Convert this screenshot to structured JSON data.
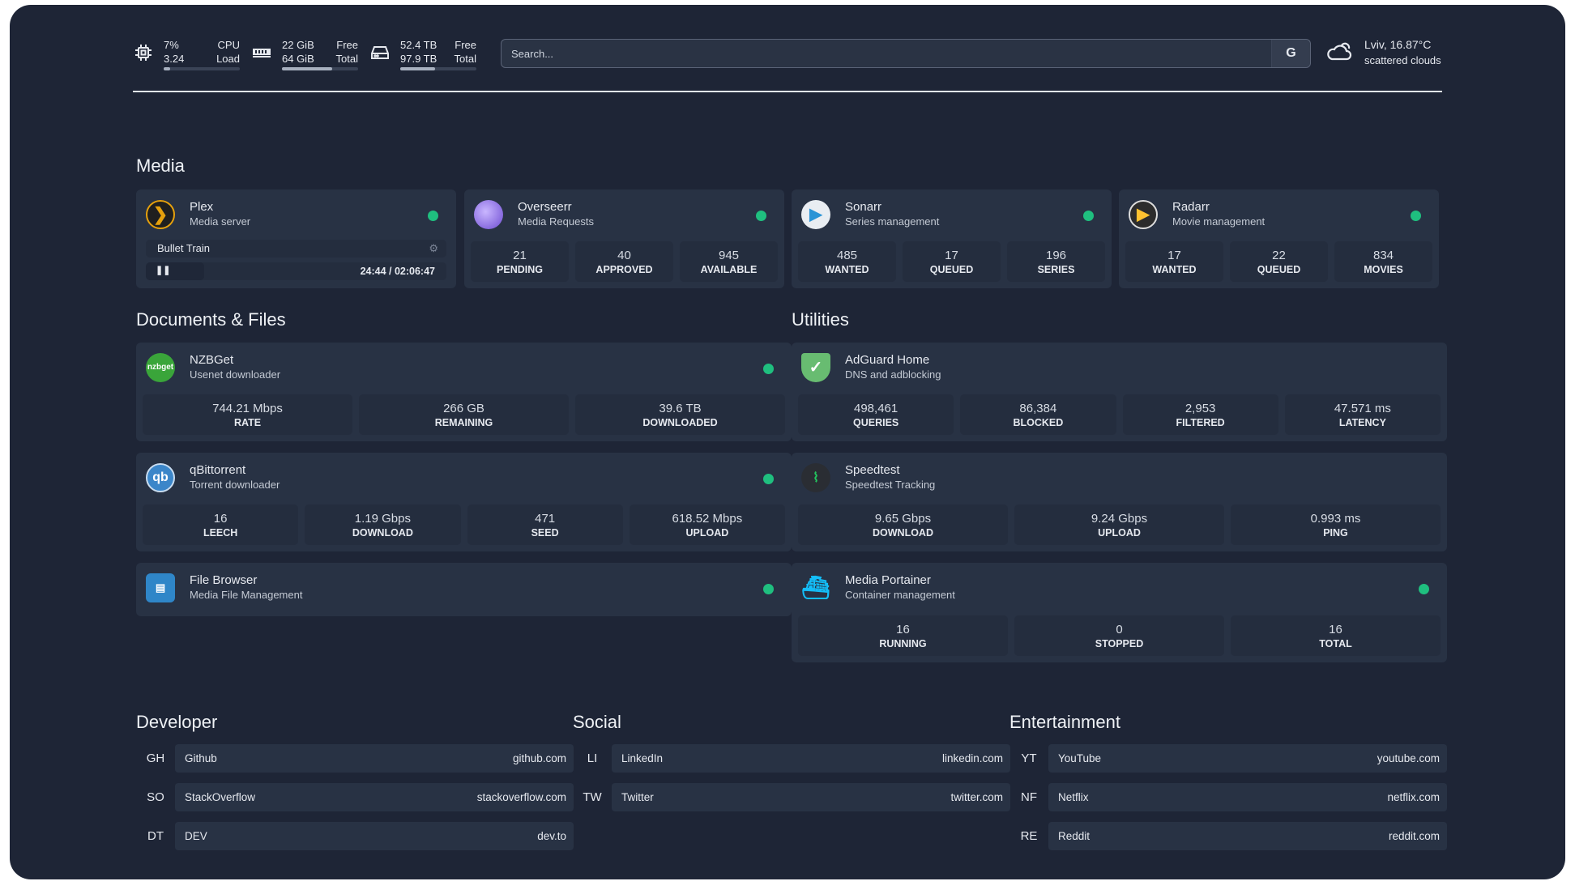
{
  "resources": {
    "cpu": {
      "icon": "cpu-icon",
      "line1_left": "7%",
      "line1_right": "CPU",
      "line2_left": "3.24",
      "line2_right": "Load",
      "usage_percent": 7
    },
    "memory": {
      "icon": "memory-icon",
      "line1_left": "22 GiB",
      "line1_right": "Free",
      "line2_left": "64 GiB",
      "line2_right": "Total",
      "usage_percent": 66
    },
    "disk": {
      "icon": "disk-icon",
      "line1_left": "52.4 TB",
      "line1_right": "Free",
      "line2_left": "97.9 TB",
      "line2_right": "Total",
      "usage_percent": 46
    }
  },
  "search": {
    "placeholder": "Search...",
    "provider_label": "G"
  },
  "weather": {
    "icon": "cloud-icon",
    "location_temp": "Lviv, 16.87°C",
    "condition": "scattered clouds"
  },
  "sections": {
    "media": "Media",
    "documents": "Documents & Files",
    "utilities": "Utilities",
    "developer": "Developer",
    "social": "Social",
    "entertainment": "Entertainment"
  },
  "plex": {
    "name": "Plex",
    "desc": "Media server",
    "status": "online",
    "now_playing": "Bullet Train",
    "time": "24:44 / 02:06:47",
    "pause_label": "❚❚"
  },
  "media_cards": [
    {
      "name": "Overseerr",
      "desc": "Media Requests",
      "icon": "overseerr-icon",
      "stats": [
        {
          "v": "21",
          "k": "PENDING"
        },
        {
          "v": "40",
          "k": "APPROVED"
        },
        {
          "v": "945",
          "k": "AVAILABLE"
        }
      ]
    },
    {
      "name": "Sonarr",
      "desc": "Series management",
      "icon": "sonarr-icon",
      "stats": [
        {
          "v": "485",
          "k": "WANTED"
        },
        {
          "v": "17",
          "k": "QUEUED"
        },
        {
          "v": "196",
          "k": "SERIES"
        }
      ]
    },
    {
      "name": "Radarr",
      "desc": "Movie management",
      "icon": "radarr-icon",
      "stats": [
        {
          "v": "17",
          "k": "WANTED"
        },
        {
          "v": "22",
          "k": "QUEUED"
        },
        {
          "v": "834",
          "k": "MOVIES"
        }
      ]
    }
  ],
  "documents": [
    {
      "name": "NZBGet",
      "desc": "Usenet downloader",
      "icon": "nzbget-icon",
      "logo_text": "nzbget",
      "status": "online",
      "stats": [
        {
          "v": "744.21 Mbps",
          "k": "RATE"
        },
        {
          "v": "266 GB",
          "k": "REMAINING"
        },
        {
          "v": "39.6 TB",
          "k": "DOWNLOADED"
        }
      ]
    },
    {
      "name": "qBittorrent",
      "desc": "Torrent downloader",
      "icon": "qbittorrent-icon",
      "logo_text": "qb",
      "status": "online",
      "stats": [
        {
          "v": "16",
          "k": "LEECH"
        },
        {
          "v": "1.19 Gbps",
          "k": "DOWNLOAD"
        },
        {
          "v": "471",
          "k": "SEED"
        },
        {
          "v": "618.52 Mbps",
          "k": "UPLOAD"
        }
      ]
    },
    {
      "name": "File Browser",
      "desc": "Media File Management",
      "icon": "filebrowser-icon",
      "status": "online",
      "stats": []
    }
  ],
  "utilities": [
    {
      "name": "AdGuard Home",
      "desc": "DNS and adblocking",
      "icon": "adguard-shield-icon",
      "stats": [
        {
          "v": "498,461",
          "k": "QUERIES"
        },
        {
          "v": "86,384",
          "k": "BLOCKED"
        },
        {
          "v": "2,953",
          "k": "FILTERED"
        },
        {
          "v": "47.571 ms",
          "k": "LATENCY"
        }
      ]
    },
    {
      "name": "Speedtest",
      "desc": "Speedtest Tracking",
      "icon": "speedtest-pulse-icon",
      "stats": [
        {
          "v": "9.65 Gbps",
          "k": "DOWNLOAD"
        },
        {
          "v": "9.24 Gbps",
          "k": "UPLOAD"
        },
        {
          "v": "0.993 ms",
          "k": "PING"
        }
      ]
    },
    {
      "name": "Media Portainer",
      "desc": "Container management",
      "icon": "portainer-icon",
      "status": "online",
      "stats": [
        {
          "v": "16",
          "k": "RUNNING"
        },
        {
          "v": "0",
          "k": "STOPPED"
        },
        {
          "v": "16",
          "k": "TOTAL"
        }
      ]
    }
  ],
  "bookmarks": {
    "developer": [
      {
        "abbr": "GH",
        "name": "Github",
        "url": "github.com"
      },
      {
        "abbr": "SO",
        "name": "StackOverflow",
        "url": "stackoverflow.com"
      },
      {
        "abbr": "DT",
        "name": "DEV",
        "url": "dev.to"
      }
    ],
    "social": [
      {
        "abbr": "LI",
        "name": "LinkedIn",
        "url": "linkedin.com"
      },
      {
        "abbr": "TW",
        "name": "Twitter",
        "url": "twitter.com"
      }
    ],
    "entertainment": [
      {
        "abbr": "YT",
        "name": "YouTube",
        "url": "youtube.com"
      },
      {
        "abbr": "NF",
        "name": "Netflix",
        "url": "netflix.com"
      },
      {
        "abbr": "RE",
        "name": "Reddit",
        "url": "reddit.com"
      }
    ]
  },
  "colors": {
    "background": "#1e2536",
    "card": "#283244",
    "status_online": "#1fbf7f"
  }
}
